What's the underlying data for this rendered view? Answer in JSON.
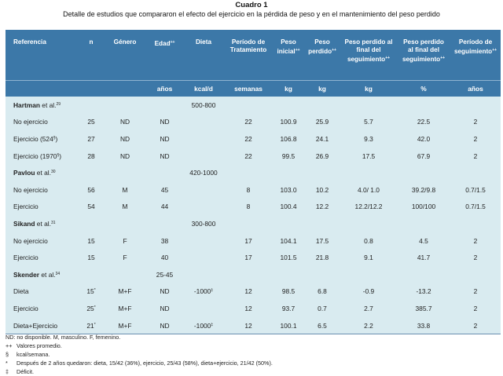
{
  "caption": {
    "title": "Cuadro 1",
    "subtitle": "Detalle de estudios que compararon el efecto del ejercicio en la pérdida de peso y en el mantenimiento del peso perdido"
  },
  "header": {
    "columns": [
      {
        "label": "Referencia",
        "sup": ""
      },
      {
        "label": "n",
        "sup": ""
      },
      {
        "label": "Género",
        "sup": ""
      },
      {
        "label": "Edad",
        "sup": "++"
      },
      {
        "label": "Dieta",
        "sup": ""
      },
      {
        "label": "Período de Tratamiento",
        "sup": ""
      },
      {
        "label": "Peso inicial",
        "sup": "++"
      },
      {
        "label": "Peso perdido",
        "sup": "++"
      },
      {
        "label": "Peso perdido al final del seguimiento",
        "sup": "++"
      },
      {
        "label": "Peso perdido al final del seguimiento",
        "sup": "++"
      },
      {
        "label": "Período de seguimiento",
        "sup": "++"
      }
    ],
    "units": [
      "",
      "",
      "",
      "años",
      "kcal/d",
      "semanas",
      "kg",
      "kg",
      "kg",
      "%",
      "años"
    ]
  },
  "groups": [
    {
      "author": "Hartman",
      "etal": " et al.",
      "ref": "29",
      "diet": "500-800",
      "age": "",
      "rows": [
        {
          "label": "No ejercicio",
          "label_sup": "",
          "n": "25",
          "n_sup": "",
          "gender": "ND",
          "age": "ND",
          "diet": "",
          "diet_sup": "",
          "period": "22",
          "initial": "100.9",
          "lost": "25.9",
          "lost_follow": "5.7",
          "lost_pct": "22.5",
          "follow": "2"
        },
        {
          "label": "Ejercicio (524",
          "label_sup": "§",
          "label_end": ")",
          "n": "27",
          "n_sup": "",
          "gender": "ND",
          "age": "ND",
          "diet": "",
          "diet_sup": "",
          "period": "22",
          "initial": "106.8",
          "lost": "24.1",
          "lost_follow": "9.3",
          "lost_pct": "42.0",
          "follow": "2"
        },
        {
          "label": "Ejercicio (1970",
          "label_sup": "§",
          "label_end": ")",
          "n": "28",
          "n_sup": "",
          "gender": "ND",
          "age": "ND",
          "diet": "",
          "diet_sup": "",
          "period": "22",
          "initial": "99.5",
          "lost": "26.9",
          "lost_follow": "17.5",
          "lost_pct": "67.9",
          "follow": "2"
        }
      ]
    },
    {
      "author": "Pavlou",
      "etal": " et al.",
      "ref": "30",
      "diet": "420-1000",
      "age": "",
      "rows": [
        {
          "label": "No ejercicio",
          "label_sup": "",
          "n": "56",
          "n_sup": "",
          "gender": "M",
          "age": "45",
          "diet": "",
          "diet_sup": "",
          "period": "8",
          "initial": "103.0",
          "lost": "10.2",
          "lost_follow": "4.0/  1.0",
          "lost_pct": "39.2/9.8",
          "follow": "0.7/1.5"
        },
        {
          "label": "Ejercicio",
          "label_sup": "",
          "n": "54",
          "n_sup": "",
          "gender": "M",
          "age": "44",
          "diet": "",
          "diet_sup": "",
          "period": "8",
          "initial": "100.4",
          "lost": "12.2",
          "lost_follow": "12.2/12.2",
          "lost_pct": "100/100",
          "follow": "0.7/1.5"
        }
      ]
    },
    {
      "author": "Sikand",
      "etal": " et al.",
      "ref": "31",
      "diet": "300-800",
      "age": "",
      "rows": [
        {
          "label": "No ejercicio",
          "label_sup": "",
          "n": "15",
          "n_sup": "",
          "gender": "F",
          "age": "38",
          "diet": "",
          "diet_sup": "",
          "period": "17",
          "initial": "104.1",
          "lost": "17.5",
          "lost_follow": "0.8",
          "lost_pct": "4.5",
          "follow": "2"
        },
        {
          "label": "Ejercicio",
          "label_sup": "",
          "n": "15",
          "n_sup": "",
          "gender": "F",
          "age": "40",
          "diet": "",
          "diet_sup": "",
          "period": "17",
          "initial": "101.5",
          "lost": "21.8",
          "lost_follow": "9.1",
          "lost_pct": "41.7",
          "follow": "2"
        }
      ]
    },
    {
      "author": "Skender",
      "etal": " et al.",
      "ref": "34",
      "diet": "",
      "age": "25-45",
      "rows": [
        {
          "label": "Dieta",
          "label_sup": "",
          "n": "15",
          "n_sup": "*",
          "gender": "M+F",
          "age": "ND",
          "diet": "-1000",
          "diet_sup": "‡",
          "period": "12",
          "initial": "98.5",
          "lost": "6.8",
          "lost_follow": "-0.9",
          "lost_pct": "-13.2",
          "follow": "2"
        },
        {
          "label": "Ejercicio",
          "label_sup": "",
          "n": "25",
          "n_sup": "*",
          "gender": "M+F",
          "age": "ND",
          "diet": "",
          "diet_sup": "",
          "period": "12",
          "initial": "93.7",
          "lost": "0.7",
          "lost_follow": "2.7",
          "lost_pct": "385.7",
          "follow": "2"
        },
        {
          "label": "Dieta+Ejercicio",
          "label_sup": "",
          "n": "21",
          "n_sup": "*",
          "gender": "M+F",
          "age": "ND",
          "diet": "-1000",
          "diet_sup": "‡",
          "period": "12",
          "initial": "100.1",
          "lost": "6.5",
          "lost_follow": "2.2",
          "lost_pct": "33.8",
          "follow": "2"
        }
      ]
    }
  ],
  "notes": {
    "first": "ND: no disponible. M, masculino. F, femenino.",
    "items": [
      {
        "sym": "++",
        "text": "Valores promedio."
      },
      {
        "sym": "§",
        "text": "kcal/semana."
      },
      {
        "sym": "*",
        "text": "Después de 2 años quedaron: dieta, 15/42 (36%), ejercicio, 25/43 (58%), dieta+ejercicio, 21/42 (50%)."
      },
      {
        "sym": "‡",
        "text": "Déficit."
      }
    ]
  }
}
